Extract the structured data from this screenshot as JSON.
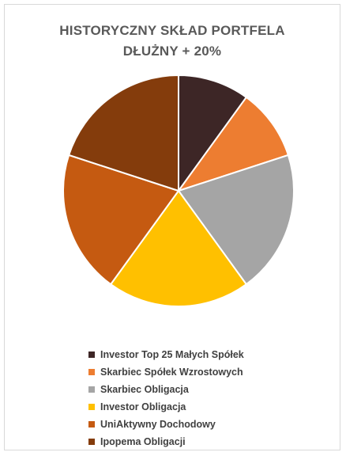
{
  "chart_data": {
    "type": "pie",
    "title_lines": [
      "HISTORYCZNY SKŁAD PORTFELA",
      "DŁUŻNY + 20%"
    ],
    "categories": [
      "Investor Top 25 Małych Spółek",
      "Skarbiec Spółek Wzrostowych",
      "Skarbiec Obligacja",
      "Investor Obligacja",
      "UniAktywny Dochodowy",
      "Ipopema Obligacji"
    ],
    "values": [
      10,
      10,
      20,
      20,
      20,
      20
    ],
    "colors": [
      "#3d2626",
      "#ed7d31",
      "#a5a5a5",
      "#ffc000",
      "#c55a11",
      "#843c0c"
    ],
    "legend_position": "bottom"
  }
}
